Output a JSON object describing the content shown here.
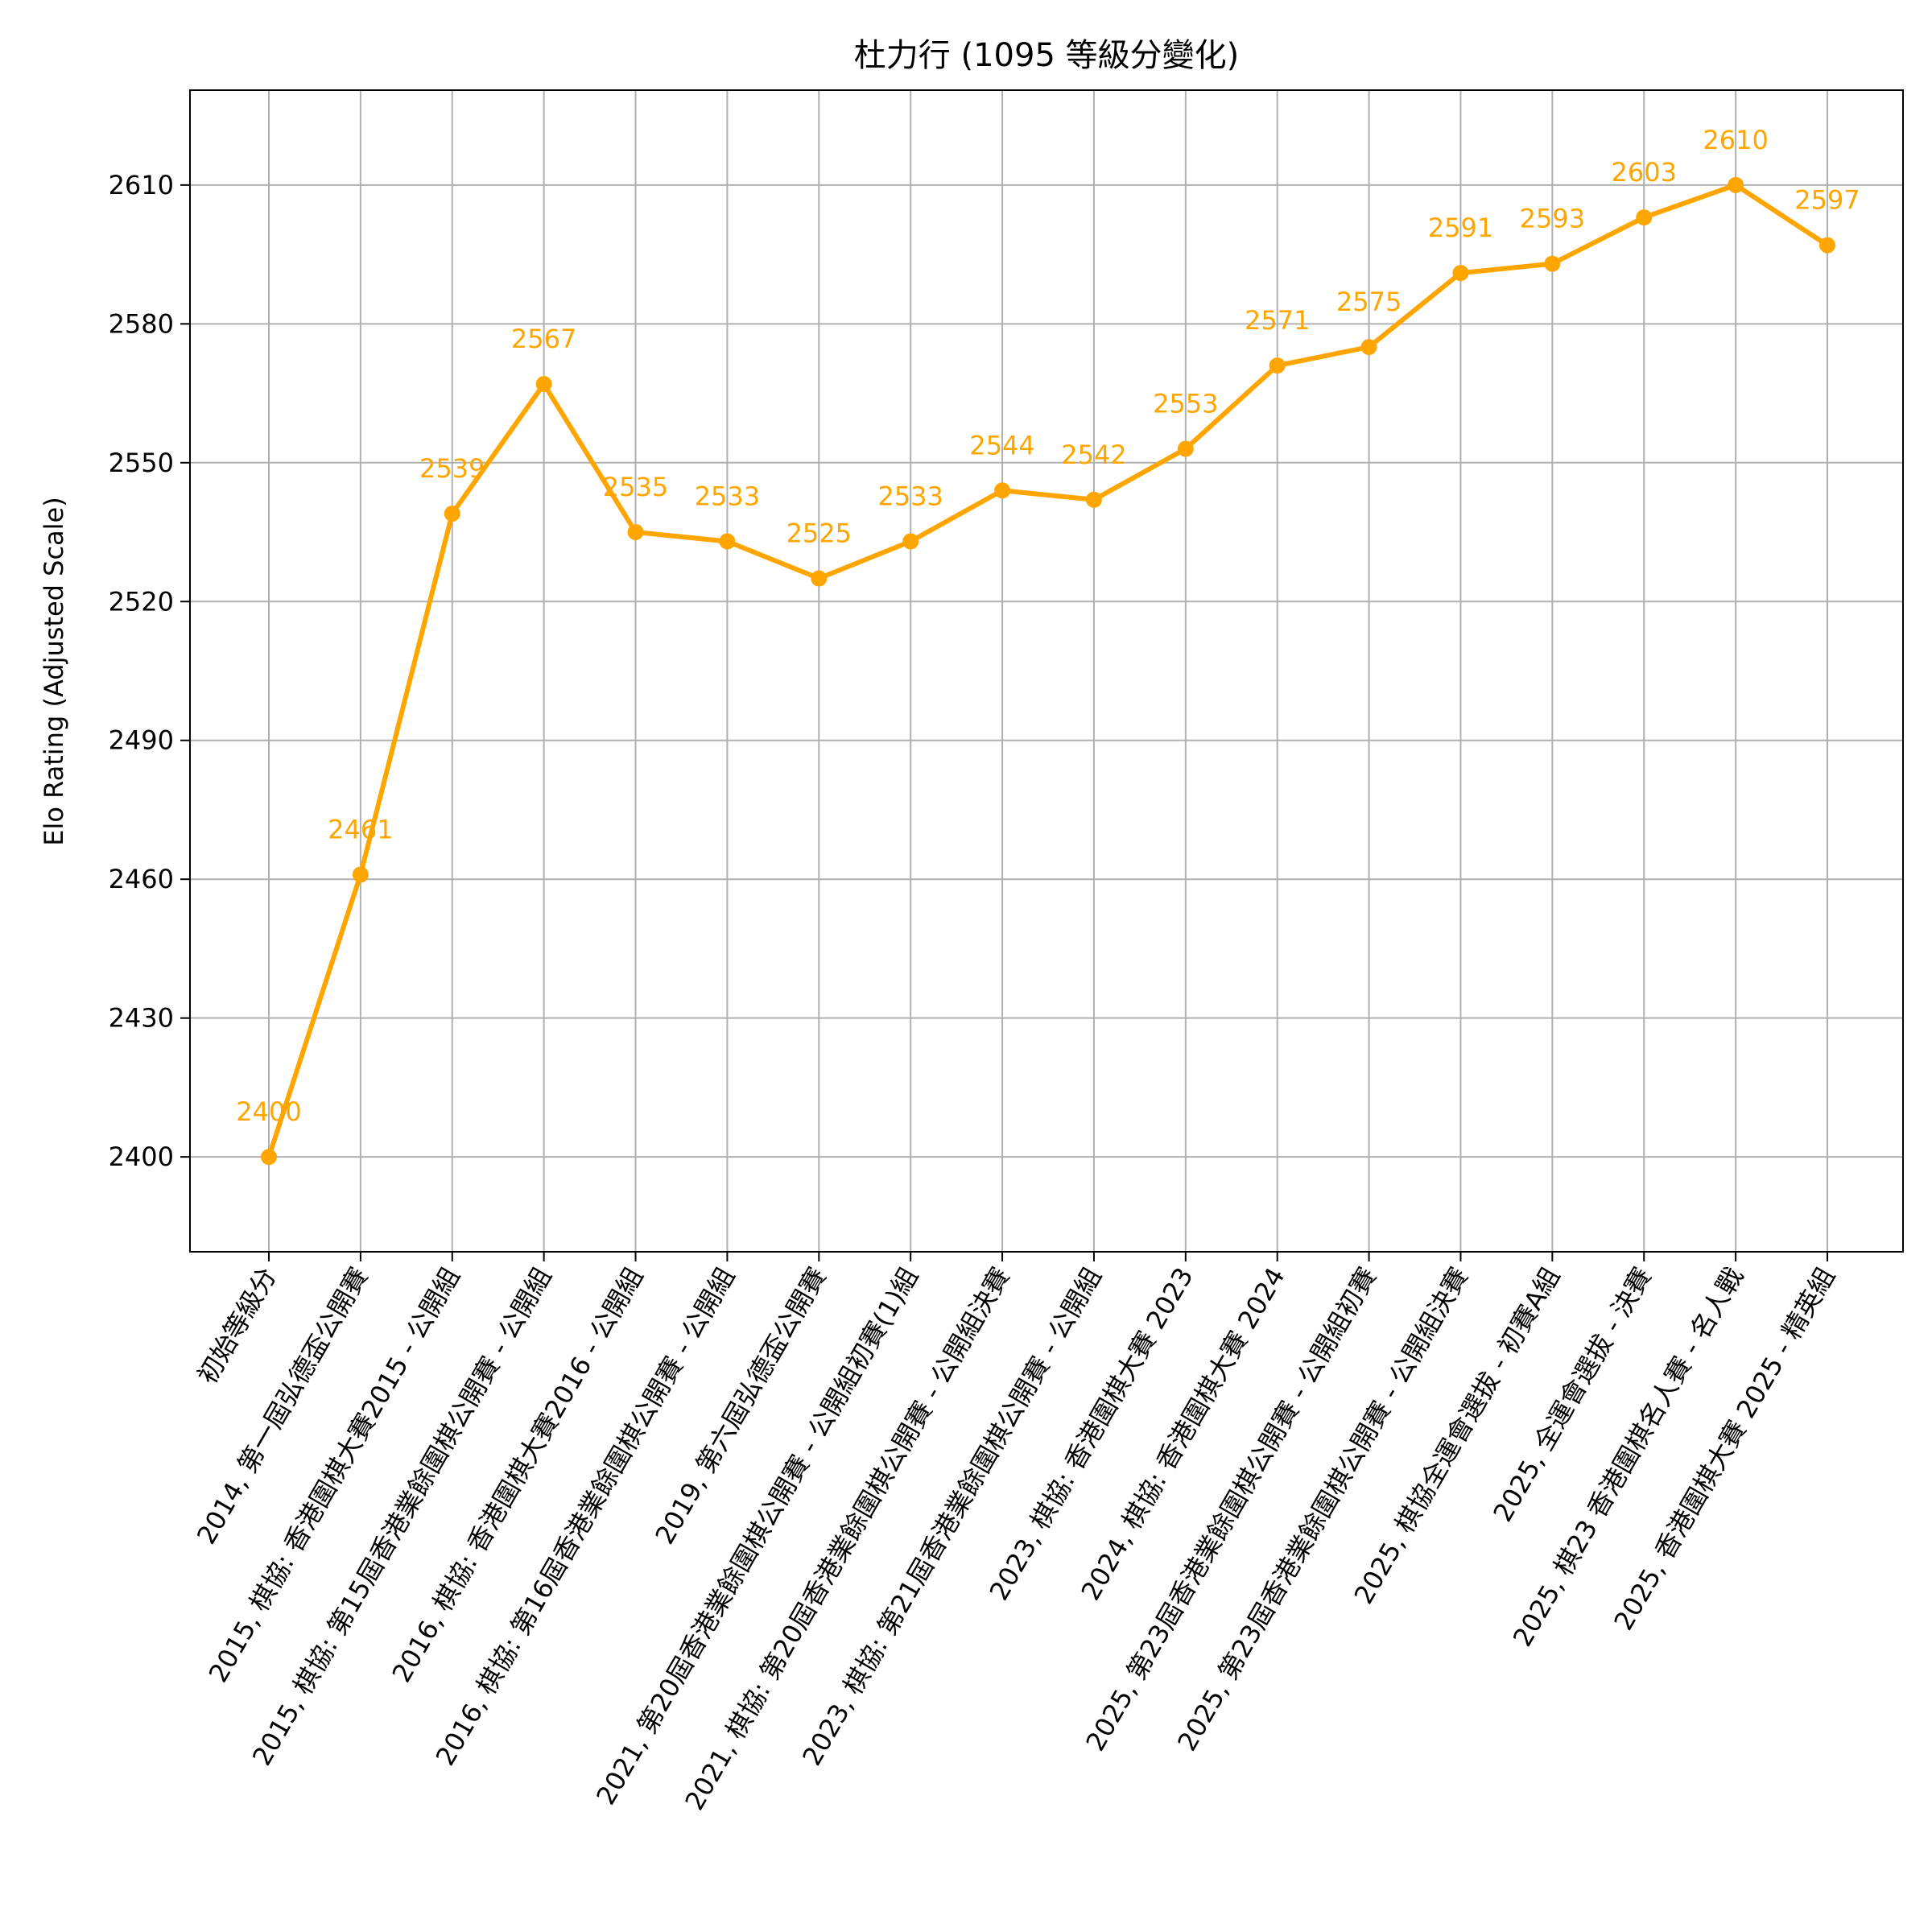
{
  "chart_data": {
    "type": "line",
    "title": "杜力行 (1095 等級分變化)",
    "xlabel": "",
    "ylabel": "Elo Rating (Adjusted Scale)",
    "categories": [
      "初始等級分",
      "2014, 第一屆弘德盃公開賽",
      "2015, 棋協: 香港圍棋大賽2015 - 公開組",
      "2015, 棋協: 第15屆香港業餘圍棋公開賽 - 公開組",
      "2016, 棋協: 香港圍棋大賽2016 - 公開組",
      "2016, 棋協: 第16屆香港業餘圍棋公開賽 - 公開組",
      "2019, 第六屆弘德盃公開賽",
      "2021, 第20屆香港業餘圍棋公開賽 - 公開組初賽(1)組",
      "2021, 棋協: 第20屆香港業餘圍棋公開賽 - 公開組決賽",
      "2023, 棋協: 第21屆香港業餘圍棋公開賽 - 公開組",
      "2023, 棋協: 香港圍棋大賽 2023",
      "2024, 棋協: 香港圍棋大賽 2024",
      "2025, 第23屆香港業餘圍棋公開賽 - 公開組初賽",
      "2025, 第23屆香港業餘圍棋公開賽 - 公開組決賽",
      "2025, 棋協全運會選拔 - 初賽A組",
      "2025, 全運會選拔 - 決賽",
      "2025, 棋23  香港圍棋名人賽 - 名人戰",
      "2025, 香港圍棋大賽 2025 - 精英組"
    ],
    "series": [
      {
        "values": [
          2400,
          2461,
          2539,
          2567,
          2535,
          2533,
          2525,
          2533,
          2544,
          2542,
          2553,
          2571,
          2575,
          2591,
          2593,
          2603,
          2610,
          2597
        ],
        "color": "#ffa500"
      }
    ],
    "data_labels": [
      "2400",
      "2461",
      "2539",
      "2567",
      "2535",
      "2533",
      "2525",
      "2533",
      "2544",
      "2542",
      "2553",
      "2571",
      "2575",
      "2591",
      "2593",
      "2603",
      "2610",
      "2597"
    ],
    "yticks": [
      2400,
      2430,
      2460,
      2490,
      2520,
      2550,
      2580,
      2610
    ],
    "ytick_labels": [
      "2400",
      "2430",
      "2460",
      "2490",
      "2520",
      "2550",
      "2580",
      "2610"
    ],
    "ylim": [
      2379.5,
      2630.5
    ],
    "grid": true,
    "legend": "none"
  }
}
